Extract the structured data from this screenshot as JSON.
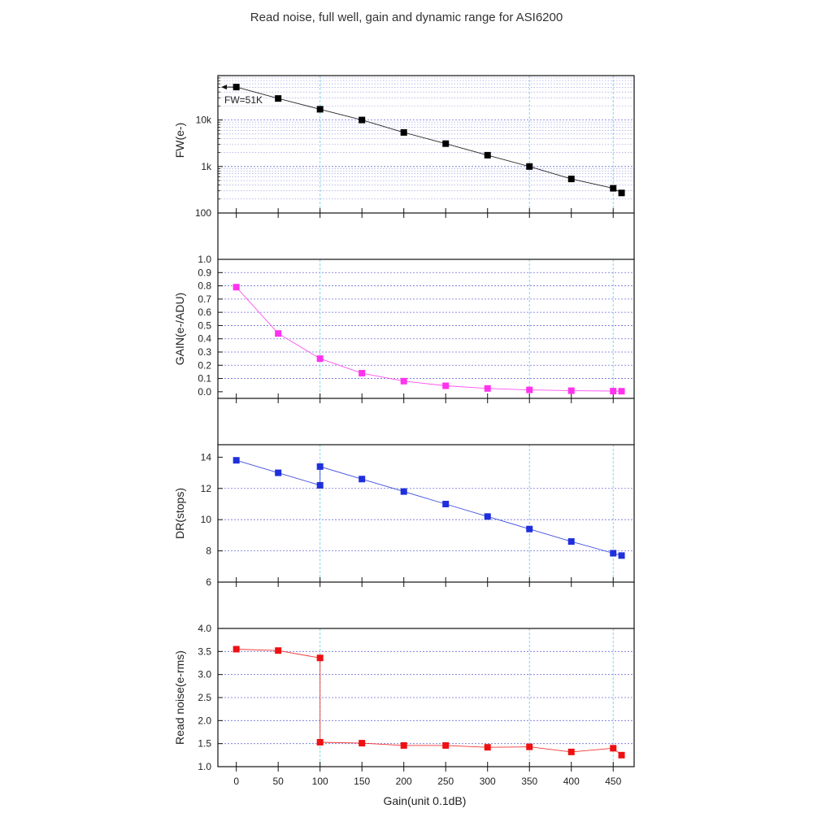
{
  "title": "Read noise, full well, gain and dynamic range for ASI6200",
  "chart_data": [
    {
      "id": "fw",
      "type": "scatter",
      "connected": true,
      "ylabel": "FW(e-)",
      "yscale": "log",
      "ylim": [
        100,
        90000
      ],
      "yticks": [
        "100",
        "1k",
        "10k"
      ],
      "annotation": "FW=51K",
      "color": "#000000",
      "x": [
        0,
        50,
        100,
        150,
        200,
        250,
        300,
        350,
        400,
        450,
        460
      ],
      "y": [
        51000,
        29000,
        17000,
        10000,
        5400,
        3100,
        1750,
        1000,
        540,
        340,
        270
      ]
    },
    {
      "id": "gain",
      "type": "scatter",
      "connected": true,
      "ylabel": "GAIN(e-/ADU)",
      "yscale": "linear",
      "ylim": [
        -0.05,
        1.0
      ],
      "yticks": [
        "0.0",
        "0.1",
        "0.2",
        "0.3",
        "0.4",
        "0.5",
        "0.6",
        "0.7",
        "0.8",
        "0.9",
        "1.0"
      ],
      "color": "#ff33ee",
      "x": [
        0,
        50,
        100,
        150,
        200,
        250,
        300,
        350,
        400,
        450,
        460
      ],
      "y": [
        0.79,
        0.44,
        0.25,
        0.14,
        0.08,
        0.045,
        0.025,
        0.014,
        0.008,
        0.005,
        0.004
      ]
    },
    {
      "id": "dr",
      "type": "scatter",
      "connected": true,
      "ylabel": "DR(stops)",
      "yscale": "linear",
      "ylim": [
        6,
        14.8
      ],
      "yticks": [
        "6",
        "8",
        "10",
        "12",
        "14"
      ],
      "color": "#1f2fdc",
      "x": [
        0,
        50,
        100,
        100,
        150,
        200,
        250,
        300,
        350,
        400,
        450,
        460
      ],
      "y": [
        13.8,
        13.0,
        12.2,
        13.4,
        12.6,
        11.8,
        11.0,
        10.2,
        9.4,
        8.6,
        7.85,
        7.7
      ]
    },
    {
      "id": "rn",
      "type": "scatter",
      "connected": true,
      "ylabel": "Read noise(e-rms)",
      "yscale": "linear",
      "ylim": [
        1.0,
        4.0
      ],
      "yticks": [
        "1.0",
        "1.5",
        "2.0",
        "2.5",
        "3.0",
        "3.5",
        "4.0"
      ],
      "color": "#ee1111",
      "x": [
        0,
        50,
        100,
        100,
        150,
        200,
        250,
        300,
        350,
        400,
        450,
        460
      ],
      "y": [
        3.55,
        3.52,
        3.36,
        1.53,
        1.51,
        1.46,
        1.46,
        1.42,
        1.43,
        1.32,
        1.4,
        1.25
      ]
    }
  ],
  "xaxis": {
    "label": "Gain(unit 0.1dB)",
    "xlim": [
      -22,
      475
    ],
    "ticks": [
      "0",
      "50",
      "100",
      "150",
      "200",
      "250",
      "300",
      "350",
      "400",
      "450"
    ],
    "vlines": [
      100,
      350,
      450
    ]
  }
}
